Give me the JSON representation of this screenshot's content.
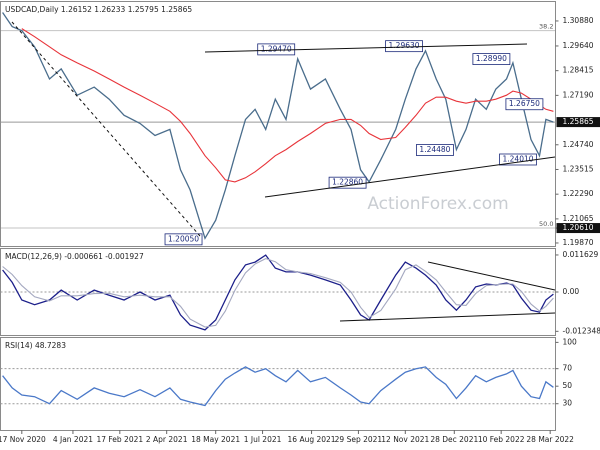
{
  "chart_data": [
    {
      "type": "line",
      "title": "USDCAD,Daily 1.26152 1.26233 1.25795 1.25865",
      "watermark": "ActionForex.com",
      "x": [
        "2020-10-30",
        "2020-11-08",
        "2020-11-17",
        "2020-11-29",
        "2020-12-13",
        "2020-12-24",
        "2021-01-08",
        "2021-01-24",
        "2021-02-07",
        "2021-02-21",
        "2021-03-08",
        "2021-03-22",
        "2021-04-05",
        "2021-04-15",
        "2021-04-24",
        "2021-05-08",
        "2021-05-18",
        "2021-05-27",
        "2021-06-05",
        "2021-06-15",
        "2021-06-24",
        "2021-07-04",
        "2021-07-13",
        "2021-07-23",
        "2021-08-03",
        "2021-08-15",
        "2021-08-29",
        "2021-09-12",
        "2021-09-22",
        "2021-10-01",
        "2021-10-09",
        "2021-10-20",
        "2021-11-03",
        "2021-11-12",
        "2021-11-22",
        "2021-12-01",
        "2021-12-11",
        "2021-12-20",
        "2021-12-30",
        "2022-01-08",
        "2022-01-17",
        "2022-01-27",
        "2022-02-05",
        "2022-02-15",
        "2022-02-21",
        "2022-03-01",
        "2022-03-10",
        "2022-03-18",
        "2022-03-24",
        "2022-03-31"
      ],
      "xlim": [
        "2020-10-28",
        "2022-04-02"
      ],
      "ylim": [
        1.1972,
        1.3182
      ],
      "yticks": [
        {
          "value": 1.3088,
          "label": "1.30880"
        },
        {
          "value": 1.2964,
          "label": "1.29640"
        },
        {
          "value": 1.28415,
          "label": "1.28415"
        },
        {
          "value": 1.2719,
          "label": "1.27190"
        },
        {
          "value": 1.2474,
          "label": "1.24740"
        },
        {
          "value": 1.23515,
          "label": "1.23515"
        },
        {
          "value": 1.2229,
          "label": "1.22290"
        },
        {
          "value": 1.21065,
          "label": "1.21065"
        },
        {
          "value": 1.2061,
          "label": "1.20610"
        },
        {
          "value": 1.1987,
          "label": "1.19870"
        }
      ],
      "series": [
        {
          "color": "#4a6d8c",
          "values": [
            1.313,
            1.306,
            1.304,
            1.296,
            1.28,
            1.285,
            1.272,
            1.276,
            1.27,
            1.262,
            1.258,
            1.252,
            1.255,
            1.235,
            1.225,
            1.201,
            1.21,
            1.225,
            1.242,
            1.26,
            1.265,
            1.255,
            1.27,
            1.26,
            1.29,
            1.275,
            1.28,
            1.265,
            1.255,
            1.235,
            1.229,
            1.24,
            1.255,
            1.27,
            1.285,
            1.294,
            1.28,
            1.27,
            1.245,
            1.255,
            1.27,
            1.265,
            1.275,
            1.28,
            1.288,
            1.27,
            1.25,
            1.242,
            1.26,
            1.25865
          ]
        },
        {
          "color": "#e8343a",
          "values": [
            null,
            null,
            1.305,
            1.301,
            1.296,
            1.292,
            1.288,
            1.284,
            1.28,
            1.276,
            1.272,
            1.268,
            1.264,
            1.259,
            1.253,
            1.242,
            1.236,
            1.23,
            1.229,
            1.231,
            1.234,
            1.238,
            1.242,
            1.245,
            1.249,
            1.253,
            1.258,
            1.26,
            1.26,
            1.257,
            1.253,
            1.25,
            1.251,
            1.256,
            1.262,
            1.268,
            1.271,
            1.271,
            1.269,
            1.268,
            1.269,
            1.269,
            1.27,
            1.272,
            1.274,
            1.273,
            1.27,
            1.267,
            1.265,
            1.264
          ]
        }
      ],
      "levels": [
        {
          "label": "38.2",
          "value": 1.304
        },
        {
          "label": "50.0",
          "value": 1.2061
        }
      ],
      "last_value": {
        "value": 1.25865,
        "label": "1.25865"
      },
      "annotations": [
        {
          "label": "1.20050",
          "value": 1.2005,
          "x": "2021-05-08"
        },
        {
          "label": "1.29470",
          "value": 1.2947,
          "x": "2021-08-03"
        },
        {
          "label": "1.22860",
          "value": 1.2286,
          "x": "2021-10-09"
        },
        {
          "label": "1.29630",
          "value": 1.2963,
          "x": "2021-12-01"
        },
        {
          "label": "1.24480",
          "value": 1.2448,
          "x": "2021-12-30"
        },
        {
          "label": "1.28990",
          "value": 1.2899,
          "x": "2022-02-21"
        },
        {
          "label": "1.24010",
          "value": 1.2401,
          "x": "2022-03-18"
        },
        {
          "label": "1.26750",
          "value": 1.2675,
          "x": "2022-03-24"
        }
      ]
    },
    {
      "type": "line",
      "title": "MACD(12,26,9) -0.000661 -0.001927",
      "x": [
        "2020-10-30",
        "2020-11-08",
        "2020-11-17",
        "2020-11-29",
        "2020-12-13",
        "2020-12-24",
        "2021-01-08",
        "2021-01-24",
        "2021-02-07",
        "2021-02-21",
        "2021-03-08",
        "2021-03-22",
        "2021-04-05",
        "2021-04-15",
        "2021-04-24",
        "2021-05-08",
        "2021-05-18",
        "2021-05-27",
        "2021-06-05",
        "2021-06-15",
        "2021-06-24",
        "2021-07-04",
        "2021-07-13",
        "2021-07-23",
        "2021-08-03",
        "2021-08-15",
        "2021-08-29",
        "2021-09-12",
        "2021-09-22",
        "2021-10-01",
        "2021-10-09",
        "2021-10-20",
        "2021-11-03",
        "2021-11-12",
        "2021-11-22",
        "2021-12-01",
        "2021-12-11",
        "2021-12-20",
        "2021-12-30",
        "2022-01-08",
        "2022-01-17",
        "2022-01-27",
        "2022-02-05",
        "2022-02-15",
        "2022-02-21",
        "2022-03-01",
        "2022-03-10",
        "2022-03-18",
        "2022-03-24",
        "2022-03-31"
      ],
      "xlim": [
        "2020-10-28",
        "2022-04-02"
      ],
      "ylim": [
        -0.0135,
        0.0135
      ],
      "yticks": [
        0.011629,
        {
          "value": 0,
          "label": "0.00"
        },
        -0.012348
      ],
      "dashed_levels": [
        0
      ],
      "series": [
        {
          "color": "#1c1f8a",
          "values": [
            0.0069,
            0.003,
            -0.0025,
            -0.004,
            -0.0025,
            0.0006,
            -0.0025,
            0.0006,
            -0.001,
            -0.0025,
            0.0,
            -0.0025,
            -0.001,
            -0.0072,
            -0.0104,
            -0.0119,
            -0.0088,
            -0.0025,
            0.0038,
            0.0085,
            0.0094,
            0.0116,
            0.0075,
            0.0063,
            0.0063,
            0.0053,
            0.0038,
            0.0022,
            -0.0025,
            -0.0072,
            -0.0088,
            -0.0025,
            0.0053,
            0.0094,
            0.0075,
            0.0053,
            0.0022,
            -0.0025,
            -0.0057,
            -0.0025,
            0.0016,
            0.0025,
            0.0022,
            0.0028,
            0.0022,
            -0.0019,
            -0.0057,
            -0.0063,
            -0.0025,
            -0.000661
          ]
        },
        {
          "color": "#a4a8c0",
          "values": [
            0.008,
            0.0055,
            0.002,
            -0.0015,
            -0.0028,
            -0.0012,
            -0.0012,
            -0.0005,
            -0.0004,
            -0.0015,
            -0.001,
            -0.0015,
            -0.0015,
            -0.0045,
            -0.0085,
            -0.011,
            -0.0105,
            -0.006,
            0.0005,
            0.006,
            0.0088,
            0.0105,
            0.0095,
            0.007,
            0.0063,
            0.0058,
            0.0045,
            0.003,
            0.0,
            -0.0048,
            -0.008,
            -0.0058,
            0.001,
            0.007,
            0.0085,
            0.0065,
            0.0038,
            0.0,
            -0.004,
            -0.0042,
            -0.0005,
            0.002,
            0.0023,
            0.0025,
            0.0025,
            0.0002,
            -0.0038,
            -0.006,
            -0.0045,
            -0.001927
          ]
        }
      ]
    },
    {
      "type": "line",
      "title": "RSI(14) 48.7283",
      "x": [
        "2020-10-30",
        "2020-11-08",
        "2020-11-17",
        "2020-11-29",
        "2020-12-13",
        "2020-12-24",
        "2021-01-08",
        "2021-01-24",
        "2021-02-07",
        "2021-02-21",
        "2021-03-08",
        "2021-03-22",
        "2021-04-05",
        "2021-04-15",
        "2021-04-24",
        "2021-05-08",
        "2021-05-18",
        "2021-05-27",
        "2021-06-05",
        "2021-06-15",
        "2021-06-24",
        "2021-07-04",
        "2021-07-13",
        "2021-07-23",
        "2021-08-03",
        "2021-08-15",
        "2021-08-29",
        "2021-09-12",
        "2021-09-22",
        "2021-10-01",
        "2021-10-09",
        "2021-10-20",
        "2021-11-03",
        "2021-11-12",
        "2021-11-22",
        "2021-12-01",
        "2021-12-11",
        "2021-12-20",
        "2021-12-30",
        "2022-01-08",
        "2022-01-17",
        "2022-01-27",
        "2022-02-05",
        "2022-02-15",
        "2022-02-21",
        "2022-03-01",
        "2022-03-10",
        "2022-03-18",
        "2022-03-24",
        "2022-03-31"
      ],
      "xlim": [
        "2020-10-28",
        "2022-04-02"
      ],
      "xticks": [
        {
          "value": "2020-11-17",
          "label": "17 Nov 2020"
        },
        {
          "value": "2021-01-04",
          "label": "4 Jan 2021"
        },
        {
          "value": "2021-02-17",
          "label": "17 Feb 2021"
        },
        {
          "value": "2021-04-02",
          "label": "2 Apr 2021"
        },
        {
          "value": "2021-05-18",
          "label": "18 May 2021"
        },
        {
          "value": "2021-07-01",
          "label": "1 Jul 2021"
        },
        {
          "value": "2021-08-16",
          "label": "16 Aug 2021"
        },
        {
          "value": "2021-09-29",
          "label": "29 Sep 2021"
        },
        {
          "value": "2021-11-12",
          "label": "12 Nov 2021"
        },
        {
          "value": "2021-12-28",
          "label": "28 Dec 2021"
        },
        {
          "value": "2022-02-10",
          "label": "10 Feb 2022"
        },
        {
          "value": "2022-03-28",
          "label": "28 Mar 2022"
        }
      ],
      "ylim": [
        0,
        105
      ],
      "yticks": [
        100,
        70,
        50,
        30
      ],
      "dashed_levels": [
        70,
        30
      ],
      "series": [
        {
          "color": "#4a78c8",
          "values": [
            62,
            48,
            40,
            38,
            30,
            45,
            35,
            48,
            42,
            38,
            46,
            38,
            48,
            35,
            32,
            28,
            45,
            58,
            65,
            72,
            66,
            70,
            62,
            55,
            68,
            55,
            60,
            48,
            40,
            32,
            30,
            45,
            58,
            66,
            70,
            72,
            60,
            52,
            36,
            48,
            62,
            55,
            60,
            64,
            68,
            50,
            38,
            36,
            55,
            48.7283
          ]
        }
      ]
    }
  ]
}
